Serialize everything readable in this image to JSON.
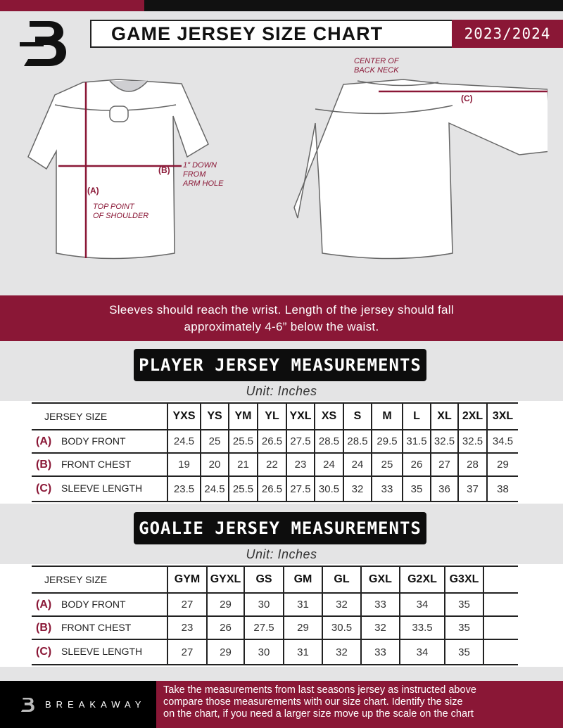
{
  "header": {
    "title": "GAME JERSEY SIZE CHART",
    "season": "2023/2024"
  },
  "diagram": {
    "label_a": "(A)",
    "label_b": "(B)",
    "label_c": "(C)",
    "top_point_note": [
      "TOP POINT",
      "OF SHOULDER"
    ],
    "arm_hole_note": [
      "1\" DOWN",
      "FROM",
      "ARM HOLE"
    ],
    "back_neck_note": [
      "CENTER OF",
      "BACK NECK"
    ]
  },
  "banner": [
    "Sleeves should reach the wrist. Length of the jersey should fall",
    "approximately 4-6” below the waist."
  ],
  "player": {
    "title": "PLAYER JERSEY MEASUREMENTS",
    "unit": "Unit: Inches",
    "header_label": "JERSEY SIZE",
    "sizes": [
      "YXS",
      "YS",
      "YM",
      "YL",
      "YXL",
      "XS",
      "S",
      "M",
      "L",
      "XL",
      "2XL",
      "3XL"
    ],
    "rows": [
      {
        "letter": "(A)",
        "label": "BODY FRONT",
        "values": [
          "24.5",
          "25",
          "25.5",
          "26.5",
          "27.5",
          "28.5",
          "28.5",
          "29.5",
          "31.5",
          "32.5",
          "32.5",
          "34.5"
        ]
      },
      {
        "letter": "(B)",
        "label": "FRONT CHEST",
        "values": [
          "19",
          "20",
          "21",
          "22",
          "23",
          "24",
          "24",
          "25",
          "26",
          "27",
          "28",
          "29"
        ]
      },
      {
        "letter": "(C)",
        "label": "SLEEVE LENGTH",
        "values": [
          "23.5",
          "24.5",
          "25.5",
          "26.5",
          "27.5",
          "30.5",
          "32",
          "33",
          "35",
          "36",
          "37",
          "38"
        ]
      }
    ]
  },
  "goalie": {
    "title": "GOALIE JERSEY MEASUREMENTS",
    "unit": "Unit: Inches",
    "header_label": "JERSEY SIZE",
    "sizes": [
      "GYM",
      "GYXL",
      "GS",
      "GM",
      "GL",
      "GXL",
      "G2XL",
      "G3XL",
      ""
    ],
    "rows": [
      {
        "letter": "(A)",
        "label": "BODY FRONT",
        "values": [
          "27",
          "29",
          "30",
          "31",
          "32",
          "33",
          "34",
          "35",
          ""
        ]
      },
      {
        "letter": "(B)",
        "label": "FRONT CHEST",
        "values": [
          "23",
          "26",
          "27.5",
          "29",
          "30.5",
          "32",
          "33.5",
          "35",
          ""
        ]
      },
      {
        "letter": "(C)",
        "label": "SLEEVE LENGTH",
        "values": [
          "27",
          "29",
          "30",
          "31",
          "32",
          "33",
          "34",
          "35",
          ""
        ]
      }
    ]
  },
  "footer": {
    "brand": "BREAKAWAY",
    "text": [
      "Take the measurements from last seasons jersey as instructed above",
      "compare those measurements  with our size chart. Identify the size",
      "on the chart, if you need a larger size move up the scale on the chart"
    ]
  },
  "colors": {
    "accent": "#8a1736",
    "dark": "#0d0d0d",
    "background": "#e4e4e5"
  }
}
